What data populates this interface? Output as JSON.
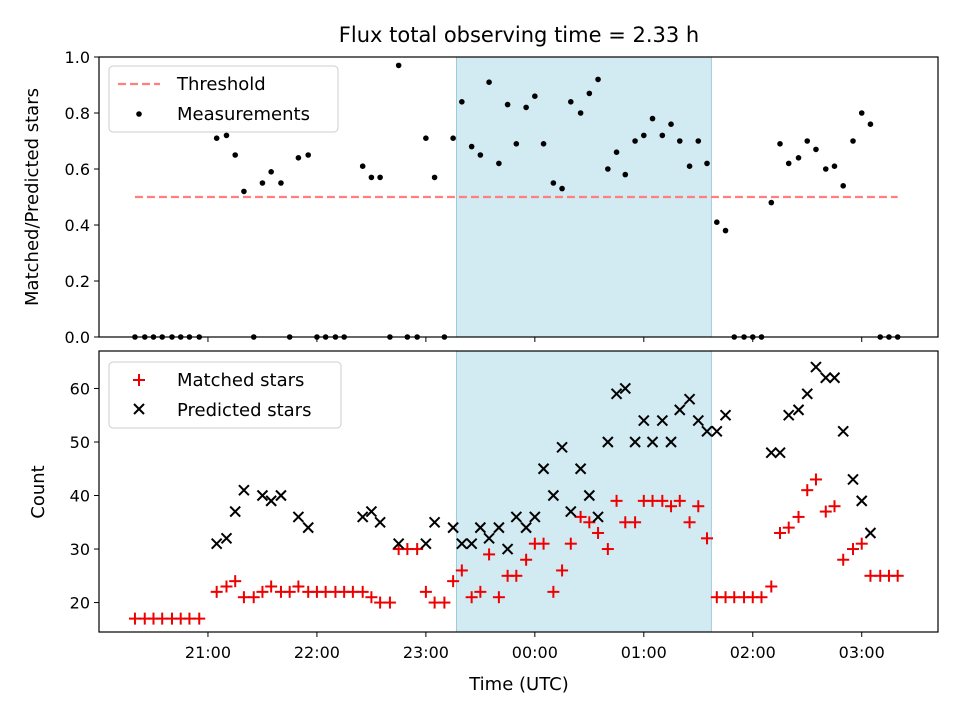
{
  "figure": {
    "title": "Flux total observing time = 2.33 h",
    "xlabel": "Time (UTC)",
    "x_tick_labels": [
      "21:00",
      "22:00",
      "23:00",
      "00:00",
      "01:00",
      "02:00",
      "03:00"
    ],
    "x_tick_hours": [
      21,
      22,
      23,
      24,
      25,
      26,
      27
    ],
    "xlim": [
      20.0,
      27.7
    ],
    "shaded_span": [
      23.28,
      25.62
    ]
  },
  "colors": {
    "threshold": "#ff7f7f",
    "measurements": "#000000",
    "matched": "#ee0000",
    "predicted": "#000000",
    "shade": "#add8e6"
  },
  "chart_data": [
    {
      "type": "scatter",
      "ylabel": "Matched/Predicted stars",
      "ylim": [
        0,
        1
      ],
      "y_ticks": [
        "0.0",
        "0.2",
        "0.4",
        "0.6",
        "0.8",
        "1.0"
      ],
      "legend": {
        "placement": "upper-left",
        "entries": [
          "Threshold",
          "Measurements"
        ]
      },
      "threshold": {
        "name": "Threshold",
        "x": [
          20.33,
          27.33
        ],
        "y": 0.5
      },
      "series": [
        {
          "name": "Measurements",
          "points": [
            [
              20.33,
              0
            ],
            [
              20.42,
              0
            ],
            [
              20.5,
              0
            ],
            [
              20.58,
              0
            ],
            [
              20.67,
              0
            ],
            [
              20.75,
              0
            ],
            [
              20.83,
              0
            ],
            [
              20.92,
              0
            ],
            [
              21.08,
              0.71
            ],
            [
              21.17,
              0.72
            ],
            [
              21.25,
              0.65
            ],
            [
              21.33,
              0.52
            ],
            [
              21.42,
              0
            ],
            [
              21.5,
              0.55
            ],
            [
              21.58,
              0.59
            ],
            [
              21.67,
              0.55
            ],
            [
              21.75,
              0
            ],
            [
              21.83,
              0.64
            ],
            [
              21.92,
              0.65
            ],
            [
              22.0,
              0
            ],
            [
              22.08,
              0
            ],
            [
              22.17,
              0
            ],
            [
              22.25,
              0
            ],
            [
              22.42,
              0.61
            ],
            [
              22.5,
              0.57
            ],
            [
              22.58,
              0.57
            ],
            [
              22.67,
              0
            ],
            [
              22.75,
              0.97
            ],
            [
              22.83,
              0
            ],
            [
              22.92,
              0
            ],
            [
              23.0,
              0.71
            ],
            [
              23.08,
              0.57
            ],
            [
              23.17,
              0
            ],
            [
              23.25,
              0.71
            ],
            [
              23.33,
              0.84
            ],
            [
              23.42,
              0.68
            ],
            [
              23.5,
              0.65
            ],
            [
              23.58,
              0.91
            ],
            [
              23.67,
              0.62
            ],
            [
              23.75,
              0.83
            ],
            [
              23.83,
              0.69
            ],
            [
              23.92,
              0.82
            ],
            [
              24.0,
              0.86
            ],
            [
              24.08,
              0.69
            ],
            [
              24.17,
              0.55
            ],
            [
              24.25,
              0.53
            ],
            [
              24.33,
              0.84
            ],
            [
              24.42,
              0.8
            ],
            [
              24.5,
              0.87
            ],
            [
              24.58,
              0.92
            ],
            [
              24.67,
              0.6
            ],
            [
              24.75,
              0.66
            ],
            [
              24.83,
              0.58
            ],
            [
              24.92,
              0.7
            ],
            [
              25.0,
              0.72
            ],
            [
              25.08,
              0.78
            ],
            [
              25.17,
              0.72
            ],
            [
              25.25,
              0.76
            ],
            [
              25.33,
              0.7
            ],
            [
              25.42,
              0.61
            ],
            [
              25.5,
              0.7
            ],
            [
              25.58,
              0.62
            ],
            [
              25.67,
              0.41
            ],
            [
              25.75,
              0.38
            ],
            [
              25.83,
              0
            ],
            [
              25.92,
              0
            ],
            [
              26.0,
              0
            ],
            [
              26.08,
              0
            ],
            [
              26.17,
              0.48
            ],
            [
              26.25,
              0.69
            ],
            [
              26.33,
              0.62
            ],
            [
              26.42,
              0.64
            ],
            [
              26.5,
              0.7
            ],
            [
              26.58,
              0.67
            ],
            [
              26.67,
              0.6
            ],
            [
              26.75,
              0.61
            ],
            [
              26.83,
              0.54
            ],
            [
              26.92,
              0.7
            ],
            [
              27.0,
              0.8
            ],
            [
              27.08,
              0.76
            ],
            [
              27.17,
              0
            ],
            [
              27.25,
              0
            ],
            [
              27.33,
              0
            ]
          ]
        }
      ]
    },
    {
      "type": "scatter",
      "ylabel": "Count",
      "ylim": [
        14.5,
        67
      ],
      "y_ticks": [
        "20",
        "30",
        "40",
        "50",
        "60"
      ],
      "y_tick_values": [
        20,
        30,
        40,
        50,
        60
      ],
      "legend": {
        "placement": "upper-left",
        "entries": [
          "Matched stars",
          "Predicted stars"
        ]
      },
      "series": [
        {
          "name": "Matched stars",
          "marker": "plus",
          "points": [
            [
              20.33,
              17
            ],
            [
              20.42,
              17
            ],
            [
              20.5,
              17
            ],
            [
              20.58,
              17
            ],
            [
              20.67,
              17
            ],
            [
              20.75,
              17
            ],
            [
              20.83,
              17
            ],
            [
              20.92,
              17
            ],
            [
              21.08,
              22
            ],
            [
              21.17,
              23
            ],
            [
              21.25,
              24
            ],
            [
              21.33,
              21
            ],
            [
              21.42,
              21
            ],
            [
              21.5,
              22
            ],
            [
              21.58,
              23
            ],
            [
              21.67,
              22
            ],
            [
              21.75,
              22
            ],
            [
              21.83,
              23
            ],
            [
              21.92,
              22
            ],
            [
              22.0,
              22
            ],
            [
              22.08,
              22
            ],
            [
              22.17,
              22
            ],
            [
              22.25,
              22
            ],
            [
              22.33,
              22
            ],
            [
              22.42,
              22
            ],
            [
              22.5,
              21
            ],
            [
              22.58,
              20
            ],
            [
              22.67,
              20
            ],
            [
              22.75,
              30
            ],
            [
              22.83,
              30
            ],
            [
              22.92,
              30
            ],
            [
              23.0,
              22
            ],
            [
              23.08,
              20
            ],
            [
              23.17,
              20
            ],
            [
              23.25,
              24
            ],
            [
              23.33,
              26
            ],
            [
              23.42,
              21
            ],
            [
              23.5,
              22
            ],
            [
              23.58,
              29
            ],
            [
              23.67,
              21
            ],
            [
              23.75,
              25
            ],
            [
              23.83,
              25
            ],
            [
              23.92,
              28
            ],
            [
              24.0,
              31
            ],
            [
              24.08,
              31
            ],
            [
              24.17,
              22
            ],
            [
              24.25,
              26
            ],
            [
              24.33,
              31
            ],
            [
              24.42,
              36
            ],
            [
              24.5,
              35
            ],
            [
              24.58,
              33
            ],
            [
              24.67,
              30
            ],
            [
              24.75,
              39
            ],
            [
              24.83,
              35
            ],
            [
              24.92,
              35
            ],
            [
              25.0,
              39
            ],
            [
              25.08,
              39
            ],
            [
              25.17,
              39
            ],
            [
              25.25,
              38
            ],
            [
              25.33,
              39
            ],
            [
              25.42,
              35
            ],
            [
              25.5,
              38
            ],
            [
              25.58,
              32
            ],
            [
              25.67,
              21
            ],
            [
              25.75,
              21
            ],
            [
              25.83,
              21
            ],
            [
              25.92,
              21
            ],
            [
              26.0,
              21
            ],
            [
              26.08,
              21
            ],
            [
              26.17,
              23
            ],
            [
              26.25,
              33
            ],
            [
              26.33,
              34
            ],
            [
              26.42,
              36
            ],
            [
              26.5,
              41
            ],
            [
              26.58,
              43
            ],
            [
              26.67,
              37
            ],
            [
              26.75,
              38
            ],
            [
              26.83,
              28
            ],
            [
              26.92,
              30
            ],
            [
              27.0,
              31
            ],
            [
              27.08,
              25
            ],
            [
              27.17,
              25
            ],
            [
              27.25,
              25
            ],
            [
              27.33,
              25
            ]
          ]
        },
        {
          "name": "Predicted stars",
          "marker": "x",
          "points": [
            [
              21.08,
              31
            ],
            [
              21.17,
              32
            ],
            [
              21.25,
              37
            ],
            [
              21.33,
              41
            ],
            [
              21.5,
              40
            ],
            [
              21.58,
              39
            ],
            [
              21.67,
              40
            ],
            [
              21.83,
              36
            ],
            [
              21.92,
              34
            ],
            [
              22.42,
              36
            ],
            [
              22.5,
              37
            ],
            [
              22.58,
              35
            ],
            [
              22.75,
              31
            ],
            [
              23.0,
              31
            ],
            [
              23.08,
              35
            ],
            [
              23.25,
              34
            ],
            [
              23.33,
              31
            ],
            [
              23.42,
              31
            ],
            [
              23.5,
              34
            ],
            [
              23.58,
              32
            ],
            [
              23.67,
              34
            ],
            [
              23.75,
              30
            ],
            [
              23.83,
              36
            ],
            [
              23.92,
              34
            ],
            [
              24.0,
              36
            ],
            [
              24.08,
              45
            ],
            [
              24.17,
              40
            ],
            [
              24.25,
              49
            ],
            [
              24.33,
              37
            ],
            [
              24.42,
              45
            ],
            [
              24.5,
              40
            ],
            [
              24.58,
              36
            ],
            [
              24.67,
              50
            ],
            [
              24.75,
              59
            ],
            [
              24.83,
              60
            ],
            [
              24.92,
              50
            ],
            [
              25.0,
              54
            ],
            [
              25.08,
              50
            ],
            [
              25.17,
              54
            ],
            [
              25.25,
              50
            ],
            [
              25.33,
              56
            ],
            [
              25.42,
              58
            ],
            [
              25.5,
              54
            ],
            [
              25.58,
              52
            ],
            [
              25.67,
              52
            ],
            [
              25.75,
              55
            ],
            [
              26.17,
              48
            ],
            [
              26.25,
              48
            ],
            [
              26.33,
              55
            ],
            [
              26.42,
              56
            ],
            [
              26.5,
              59
            ],
            [
              26.58,
              64
            ],
            [
              26.67,
              62
            ],
            [
              26.75,
              62
            ],
            [
              26.83,
              52
            ],
            [
              26.92,
              43
            ],
            [
              27.0,
              39
            ],
            [
              27.08,
              33
            ]
          ]
        }
      ]
    }
  ]
}
